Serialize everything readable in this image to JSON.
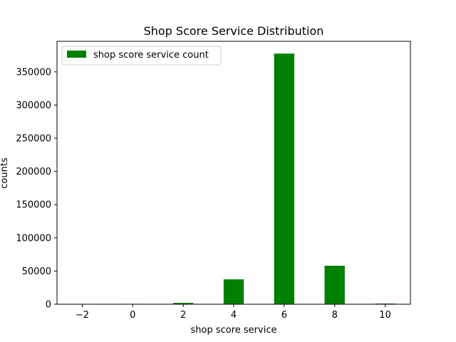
{
  "chart_data": {
    "type": "bar",
    "title": "Shop Score Service Distribution",
    "xlabel": "shop score service",
    "ylabel": "counts",
    "xlim": [
      -3,
      11
    ],
    "ylim": [
      0,
      396000
    ],
    "bar_width": 0.8,
    "x_ticks": [
      -2,
      0,
      2,
      4,
      6,
      8,
      10
    ],
    "x_tick_labels": [
      "−2",
      "0",
      "2",
      "4",
      "6",
      "8",
      "10"
    ],
    "y_ticks": [
      0,
      50000,
      100000,
      150000,
      200000,
      250000,
      300000,
      350000
    ],
    "y_tick_labels": [
      "0",
      "50000",
      "100000",
      "150000",
      "200000",
      "250000",
      "300000",
      "350000"
    ],
    "series": [
      {
        "name": "shop score service count",
        "color": "#008000",
        "x": [
          0,
          2,
          4,
          6,
          8,
          10
        ],
        "values": [
          600,
          2000,
          37500,
          377500,
          58000,
          1000
        ]
      }
    ],
    "legend": {
      "placement": "top-left"
    },
    "grid": false
  }
}
